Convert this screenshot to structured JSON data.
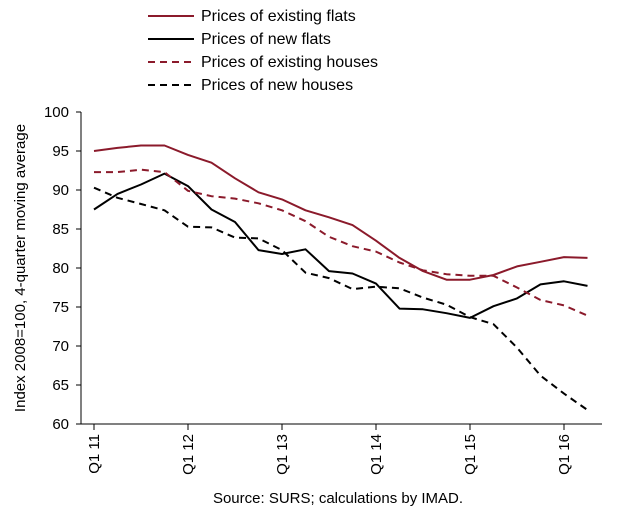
{
  "chart_data": {
    "type": "line",
    "ylabel": "Index 2008=100, 4-quarter moving average",
    "ylim": [
      60,
      100
    ],
    "yticks": [
      60,
      65,
      70,
      75,
      80,
      85,
      90,
      95,
      100
    ],
    "x": [
      "Q1 11",
      "Q2 11",
      "Q3 11",
      "Q4 11",
      "Q1 12",
      "Q2 12",
      "Q3 12",
      "Q4 12",
      "Q1 13",
      "Q2 13",
      "Q3 13",
      "Q4 13",
      "Q1 14",
      "Q2 14",
      "Q3 14",
      "Q4 14",
      "Q1 15",
      "Q2 15",
      "Q3 15",
      "Q4 15",
      "Q1 16",
      "Q2 16"
    ],
    "xtick_labels": [
      "Q1 11",
      "Q1 12",
      "Q1 13",
      "Q1 14",
      "Q1 15",
      "Q1 16"
    ],
    "legend_position": "top",
    "grid": false,
    "series": [
      {
        "name": "Prices of existing flats",
        "color": "#8b1a2b",
        "dash": "solid",
        "values": [
          95.0,
          95.4,
          95.7,
          95.7,
          94.5,
          93.5,
          91.5,
          89.7,
          88.8,
          87.4,
          86.5,
          85.5,
          83.5,
          81.3,
          79.6,
          78.5,
          78.5,
          79.1,
          80.2,
          80.8,
          81.4,
          81.3
        ]
      },
      {
        "name": "Prices of new flats",
        "color": "#000000",
        "dash": "solid",
        "values": [
          87.5,
          89.5,
          90.7,
          92.1,
          90.5,
          87.5,
          85.9,
          82.3,
          81.8,
          82.4,
          79.6,
          79.3,
          78.0,
          74.8,
          74.7,
          74.2,
          73.6,
          75.1,
          76.1,
          77.9,
          78.3,
          77.7
        ]
      },
      {
        "name": "Prices of existing houses",
        "color": "#8b1a2b",
        "dash": "dashed",
        "values": [
          92.3,
          92.3,
          92.6,
          92.3,
          89.9,
          89.2,
          88.9,
          88.3,
          87.4,
          86.0,
          84.0,
          82.8,
          82.1,
          80.7,
          79.7,
          79.2,
          79.0,
          79.0,
          77.5,
          75.9,
          75.2,
          73.9
        ]
      },
      {
        "name": "Prices of new houses",
        "color": "#000000",
        "dash": "dashed",
        "values": [
          90.3,
          89.0,
          88.2,
          87.4,
          85.3,
          85.2,
          83.9,
          83.8,
          82.3,
          79.4,
          78.7,
          77.3,
          77.6,
          77.4,
          76.2,
          75.3,
          73.7,
          72.8,
          69.8,
          66.2,
          63.9,
          61.8
        ]
      }
    ],
    "source": "Source: SURS; calculations by IMAD."
  }
}
